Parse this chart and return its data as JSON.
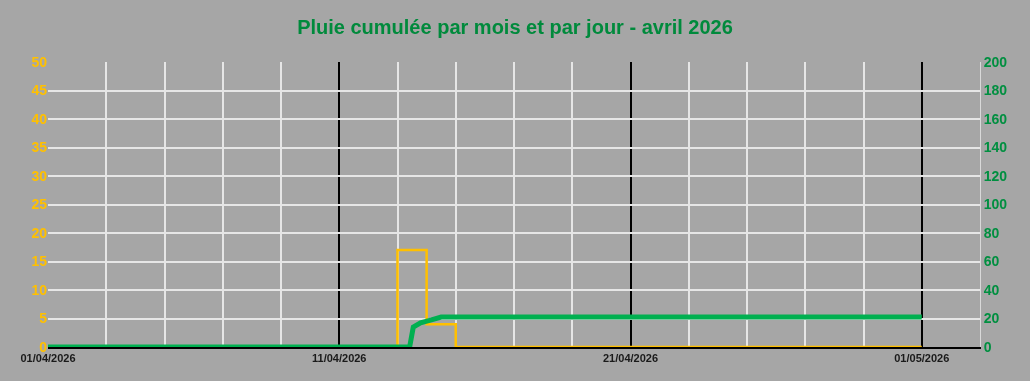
{
  "chart_data": {
    "type": "line",
    "title": "Pluie cumulée par mois et par jour - avril 2026",
    "series": [
      {
        "type": "step",
        "color": "#ffc000",
        "x": [
          "2026-04-01",
          "2026-04-02",
          "2026-04-03",
          "2026-04-04",
          "2026-04-05",
          "2026-04-06",
          "2026-04-07",
          "2026-04-08",
          "2026-04-09",
          "2026-04-10",
          "2026-04-11",
          "2026-04-12",
          "2026-04-13",
          "2026-04-14",
          "2026-04-15",
          "2026-04-16",
          "2026-04-17",
          "2026-04-18",
          "2026-04-19",
          "2026-04-20",
          "2026-04-21",
          "2026-04-22",
          "2026-04-23",
          "2026-04-24",
          "2026-04-25",
          "2026-04-26",
          "2026-04-27",
          "2026-04-28",
          "2026-04-29",
          "2026-04-30",
          "2026-05-01"
        ],
        "values": [
          0,
          0,
          0,
          0,
          0,
          0,
          0,
          0,
          0,
          0,
          0,
          0,
          17,
          4,
          0,
          0,
          0,
          0,
          0,
          0,
          0,
          0,
          0,
          0,
          0,
          0,
          0,
          0,
          0,
          0,
          0
        ]
      },
      {
        "axis": "y2",
        "color": "#00b050",
        "x": [
          "2026-04-01",
          "2026-04-13T10:00",
          "2026-04-13T13:00",
          "2026-04-13T19:00",
          "2026-04-14T04:00",
          "2026-04-14T12:00",
          "2026-05-01"
        ],
        "values": [
          0,
          0,
          14,
          17,
          19,
          21,
          21
        ]
      }
    ],
    "xlim": [
      "2026-04-01",
      "2026-05-03"
    ],
    "xticks": [
      {
        "value": "2026-04-01",
        "label": "01/04/2026"
      },
      {
        "value": "2026-04-03",
        "label": null
      },
      {
        "value": "2026-04-05",
        "label": null
      },
      {
        "value": "2026-04-07",
        "label": null
      },
      {
        "value": "2026-04-09",
        "label": null
      },
      {
        "value": "2026-04-11",
        "label": "11/04/2026"
      },
      {
        "value": "2026-04-13",
        "label": null
      },
      {
        "value": "2026-04-15",
        "label": null
      },
      {
        "value": "2026-04-17",
        "label": null
      },
      {
        "value": "2026-04-19",
        "label": null
      },
      {
        "value": "2026-04-21",
        "label": "21/04/2026"
      },
      {
        "value": "2026-04-23",
        "label": null
      },
      {
        "value": "2026-04-25",
        "label": null
      },
      {
        "value": "2026-04-27",
        "label": null
      },
      {
        "value": "2026-04-29",
        "label": null
      },
      {
        "value": "2026-05-01",
        "label": "01/05/2026"
      },
      {
        "value": "2026-05-03",
        "label": null
      }
    ],
    "ylim": [
      0,
      50
    ],
    "yticks": [
      0,
      5,
      10,
      15,
      20,
      25,
      30,
      35,
      40,
      45,
      50
    ],
    "y2lim": [
      0,
      200
    ],
    "y2ticks": [
      0,
      20,
      40,
      60,
      80,
      100,
      120,
      140,
      160,
      180,
      200
    ],
    "grid": true
  }
}
